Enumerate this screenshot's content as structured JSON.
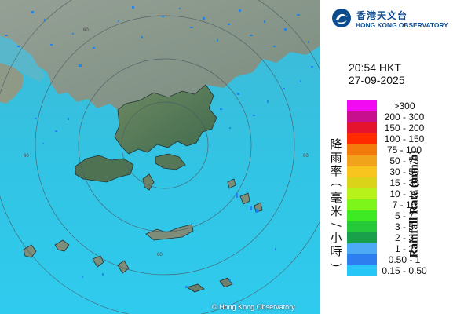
{
  "header": {
    "org_cn": "香港天文台",
    "org_en": "HONG KONG OBSERVATORY",
    "logo_icon": "hko-logo-icon"
  },
  "timestamp": {
    "time": "20:54 HKT",
    "date": "27-09-2025"
  },
  "legend": {
    "title_en": "Rainfall Rate (mm/h)",
    "title_cn": "降雨率(毫米/小時)",
    "items": [
      {
        "label": ">300",
        "color": "#f20af2"
      },
      {
        "label": "200 - 300",
        "color": "#c8108e"
      },
      {
        "label": "150 - 200",
        "color": "#e6132f"
      },
      {
        "label": "100 - 150",
        "color": "#ff2a00"
      },
      {
        "label": "75 - 100",
        "color": "#f27b0c"
      },
      {
        "label": "50 - 75",
        "color": "#f0a31b"
      },
      {
        "label": "30 - 50",
        "color": "#f7c51e"
      },
      {
        "label": "15 - 30",
        "color": "#dbd319"
      },
      {
        "label": "10 - 15",
        "color": "#b7f21b"
      },
      {
        "label": "7 - 10",
        "color": "#7ef51a"
      },
      {
        "label": "5 - 7",
        "color": "#3dea24"
      },
      {
        "label": "3 - 5",
        "color": "#25c93a"
      },
      {
        "label": "2 - 3",
        "color": "#1a9f4a"
      },
      {
        "label": "1 - 2",
        "color": "#4faaf5"
      },
      {
        "label": "0.50 - 1",
        "color": "#2e7ef0"
      },
      {
        "label": "0.15 - 0.50",
        "color": "#26c6f7"
      }
    ]
  },
  "map": {
    "range_ring_label": "60",
    "copyright": "© Hong Kong Observatory",
    "sea_color": "#34c7e6",
    "rain_echo_color": "#1e82e6"
  }
}
